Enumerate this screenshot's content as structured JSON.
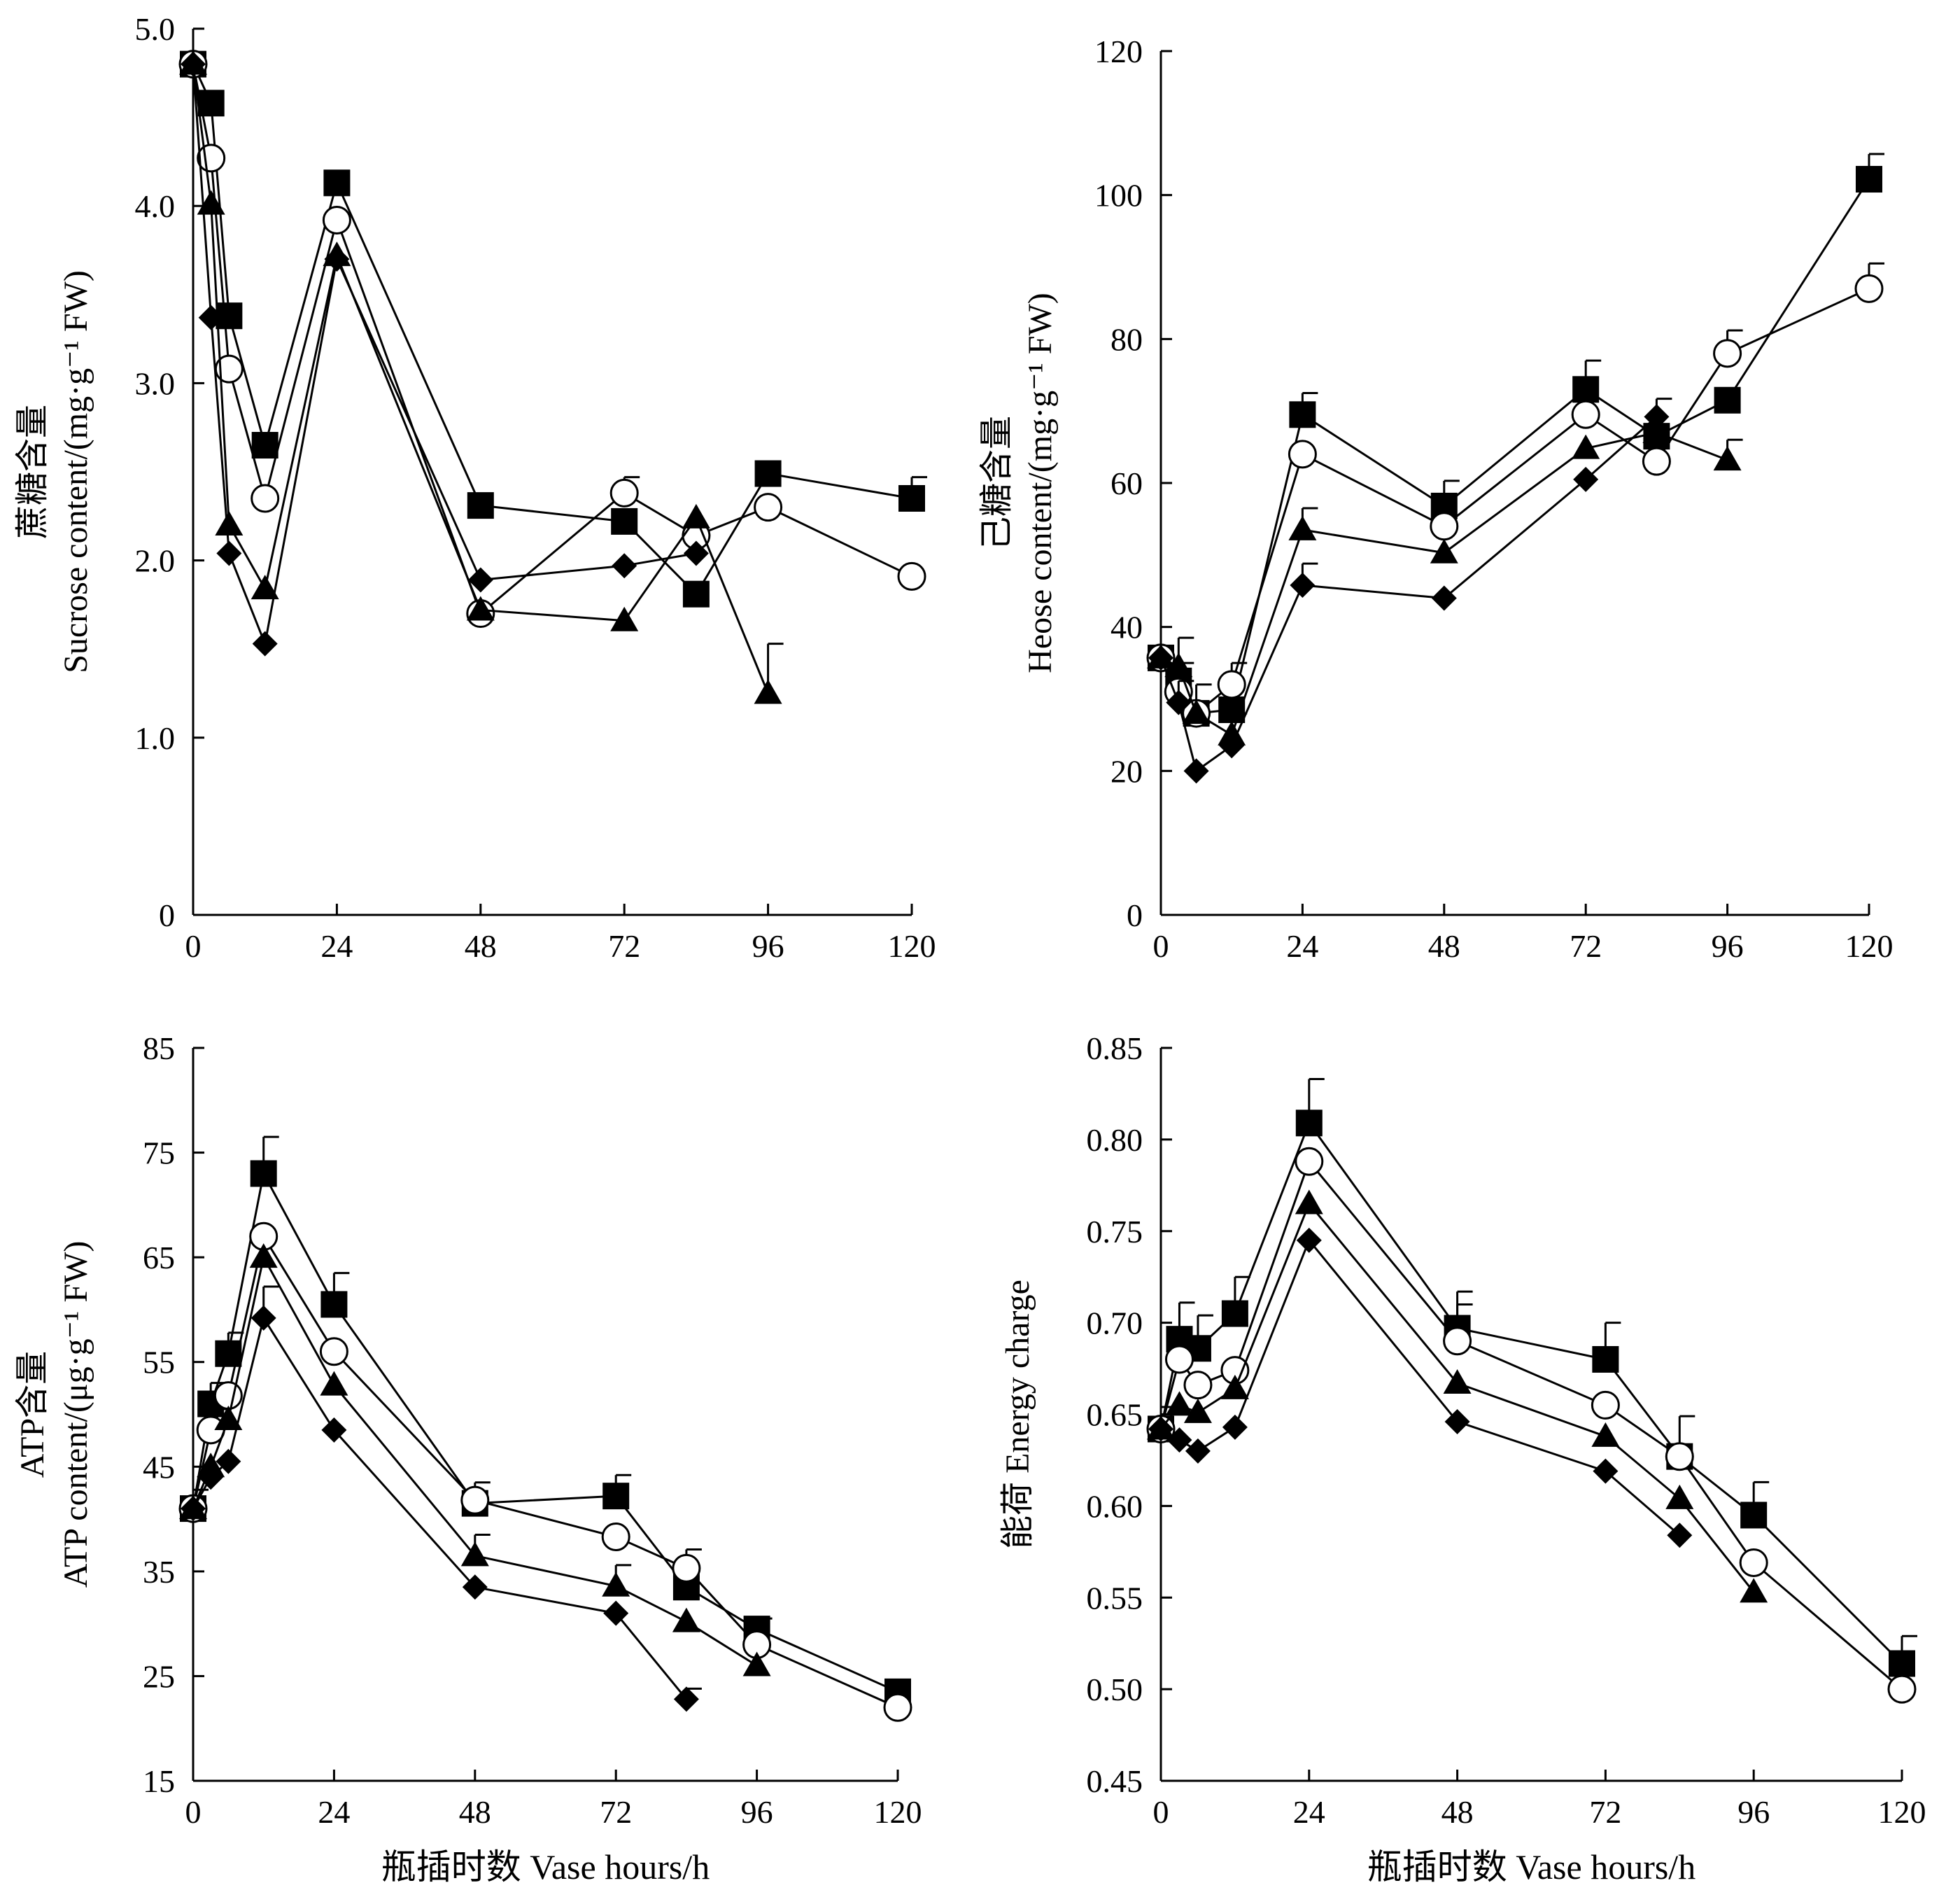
{
  "chart_data": [
    {
      "type": "line",
      "xlabel": "",
      "ylabel_cn": "蔗糖含量",
      "ylabel_en": "Sucrose content/(mg·g⁻¹ FW)",
      "xlim": [
        0,
        120
      ],
      "ylim": [
        0,
        5
      ],
      "xticks": [
        0,
        24,
        48,
        72,
        96,
        120
      ],
      "yticks": [
        0,
        1,
        2,
        3,
        4,
        5
      ],
      "xtick_labels": [
        "0",
        "24",
        "48",
        "72",
        "96",
        "120"
      ],
      "ytick_labels": [
        "0",
        "1.0",
        "2.0",
        "3.0",
        "4.0",
        "5.0"
      ],
      "series": [
        {
          "marker": "square",
          "points": [
            [
              0,
              4.8
            ],
            [
              3,
              4.58
            ],
            [
              6,
              3.38
            ],
            [
              12,
              2.65
            ],
            [
              24,
              4.13
            ],
            [
              48,
              2.31
            ],
            [
              72,
              2.22
            ],
            [
              84,
              1.81
            ],
            [
              96,
              2.49
            ],
            [
              120,
              2.35
            ]
          ],
          "err": [
            0,
            0,
            0,
            0,
            0,
            0,
            0,
            0,
            0,
            0.12
          ]
        },
        {
          "marker": "circle",
          "points": [
            [
              0,
              4.8
            ],
            [
              3,
              4.27
            ],
            [
              6,
              3.08
            ],
            [
              12,
              2.35
            ],
            [
              24,
              3.92
            ],
            [
              48,
              1.7
            ],
            [
              72,
              2.38
            ],
            [
              84,
              2.14
            ],
            [
              96,
              2.3
            ],
            [
              120,
              1.91
            ]
          ],
          "err": [
            0,
            0,
            0,
            0,
            0,
            0,
            0.09,
            0,
            0,
            0
          ]
        },
        {
          "marker": "triangle",
          "points": [
            [
              0,
              4.8
            ],
            [
              3,
              4.01
            ],
            [
              6,
              2.2
            ],
            [
              12,
              1.84
            ],
            [
              24,
              3.72
            ],
            [
              48,
              1.72
            ],
            [
              72,
              1.66
            ],
            [
              84,
              2.24
            ],
            [
              96,
              1.25
            ]
          ],
          "err": [
            0,
            0,
            0,
            0,
            0,
            0,
            0,
            0,
            0.28
          ]
        },
        {
          "marker": "diamond",
          "points": [
            [
              0,
              4.8
            ],
            [
              3,
              3.37
            ],
            [
              6,
              2.04
            ],
            [
              12,
              1.53
            ],
            [
              24,
              3.7
            ],
            [
              48,
              1.89
            ],
            [
              72,
              1.97
            ],
            [
              84,
              2.04
            ]
          ],
          "err": [
            0,
            0,
            0,
            0,
            0,
            0,
            0,
            0
          ]
        }
      ]
    },
    {
      "type": "line",
      "xlabel": "",
      "ylabel_cn": "己糖含量",
      "ylabel_en": "Heose content/(mg·g⁻¹ FW)",
      "xlim": [
        0,
        120
      ],
      "ylim": [
        0,
        120
      ],
      "xticks": [
        0,
        24,
        48,
        72,
        96,
        120
      ],
      "yticks": [
        0,
        20,
        40,
        60,
        80,
        100,
        120
      ],
      "xtick_labels": [
        "0",
        "24",
        "48",
        "72",
        "96",
        "120"
      ],
      "ytick_labels": [
        "0",
        "20",
        "40",
        "60",
        "80",
        "100",
        "120"
      ],
      "series": [
        {
          "marker": "square",
          "points": [
            [
              0,
              35.7
            ],
            [
              3,
              32.5
            ],
            [
              6,
              28
            ],
            [
              12,
              28.5
            ],
            [
              24,
              69.5
            ],
            [
              48,
              56.8
            ],
            [
              72,
              73
            ],
            [
              84,
              66.5
            ],
            [
              96,
              71.5
            ],
            [
              120,
              102.2
            ]
          ],
          "err": [
            0,
            2.5,
            0,
            0,
            3,
            3.5,
            4,
            0,
            0,
            3.5
          ]
        },
        {
          "marker": "circle",
          "points": [
            [
              0,
              35.7
            ],
            [
              3,
              31
            ],
            [
              6,
              28
            ],
            [
              12,
              32
            ],
            [
              24,
              64
            ],
            [
              48,
              54
            ],
            [
              72,
              69.5
            ],
            [
              84,
              63
            ],
            [
              96,
              78
            ],
            [
              120,
              87
            ]
          ],
          "err": [
            0,
            0,
            0,
            3,
            0,
            0,
            0,
            0,
            3.2,
            3.5
          ]
        },
        {
          "marker": "triangle",
          "points": [
            [
              0,
              35.7
            ],
            [
              3,
              34.5
            ],
            [
              6,
              28
            ],
            [
              12,
              25
            ],
            [
              24,
              53.5
            ],
            [
              48,
              50.3
            ],
            [
              72,
              64.8
            ],
            [
              84,
              67
            ],
            [
              96,
              63.2
            ]
          ],
          "err": [
            0,
            4,
            4,
            3,
            3,
            0,
            0,
            0,
            2.8
          ]
        },
        {
          "marker": "diamond",
          "points": [
            [
              0,
              35.7
            ],
            [
              3,
              29.5
            ],
            [
              6,
              20
            ],
            [
              12,
              23.5
            ],
            [
              24,
              45.8
            ],
            [
              48,
              44
            ],
            [
              72,
              60.5
            ],
            [
              84,
              69.2
            ]
          ],
          "err": [
            0,
            3,
            0,
            0,
            3,
            0,
            0,
            2.5
          ]
        }
      ]
    },
    {
      "type": "line",
      "xlabel": "瓶插时数  Vase hours/h",
      "ylabel_cn": "ATP含量",
      "ylabel_en": "ATP content/(μg·g⁻¹ FW)",
      "xlim": [
        0,
        120
      ],
      "ylim": [
        15,
        85
      ],
      "xticks": [
        0,
        24,
        48,
        72,
        96,
        120
      ],
      "yticks": [
        15,
        25,
        35,
        45,
        55,
        65,
        75,
        85
      ],
      "xtick_labels": [
        "0",
        "24",
        "48",
        "72",
        "96",
        "120"
      ],
      "ytick_labels": [
        "15",
        "25",
        "35",
        "45",
        "55",
        "65",
        "75",
        "85"
      ],
      "series": [
        {
          "marker": "square",
          "points": [
            [
              0,
              41
            ],
            [
              3,
              51
            ],
            [
              6,
              55.8
            ],
            [
              12,
              73
            ],
            [
              24,
              60.5
            ],
            [
              48,
              41.5
            ],
            [
              72,
              42.2
            ],
            [
              84,
              33.5
            ],
            [
              96,
              29.5
            ],
            [
              120,
              23.5
            ]
          ],
          "err": [
            1.8,
            2,
            2,
            3.5,
            3,
            2,
            2,
            0,
            1,
            0
          ]
        },
        {
          "marker": "circle",
          "points": [
            [
              0,
              41
            ],
            [
              3,
              48.5
            ],
            [
              6,
              51.8
            ],
            [
              12,
              67
            ],
            [
              24,
              56
            ],
            [
              48,
              41.8
            ],
            [
              72,
              38.3
            ],
            [
              84,
              35.3
            ],
            [
              96,
              28
            ],
            [
              120,
              22
            ]
          ],
          "err": [
            0,
            2,
            0,
            0,
            0,
            0,
            0,
            1.8,
            0,
            0
          ]
        },
        {
          "marker": "triangle",
          "points": [
            [
              0,
              41
            ],
            [
              3,
              45
            ],
            [
              6,
              49.5
            ],
            [
              12,
              65
            ],
            [
              24,
              52.8
            ],
            [
              48,
              36.5
            ],
            [
              72,
              33.6
            ],
            [
              84,
              30.2
            ],
            [
              96,
              26
            ]
          ],
          "err": [
            0,
            0,
            0,
            0,
            0,
            2,
            2,
            0,
            0
          ]
        },
        {
          "marker": "diamond",
          "points": [
            [
              0,
              41
            ],
            [
              3,
              44
            ],
            [
              6,
              45.5
            ],
            [
              12,
              59.2
            ],
            [
              24,
              48.5
            ],
            [
              48,
              33.5
            ],
            [
              72,
              31
            ],
            [
              84,
              22.8
            ]
          ],
          "err": [
            0,
            0,
            0,
            3,
            0,
            0,
            0,
            1
          ]
        }
      ]
    },
    {
      "type": "line",
      "xlabel": "瓶插时数  Vase hours/h",
      "ylabel_cn": "能荷",
      "ylabel_en": "Energy charge",
      "xlim": [
        0,
        120
      ],
      "ylim": [
        0.45,
        0.85
      ],
      "xticks": [
        0,
        24,
        48,
        72,
        96,
        120
      ],
      "yticks": [
        0.45,
        0.5,
        0.55,
        0.6,
        0.65,
        0.7,
        0.75,
        0.8,
        0.85
      ],
      "xtick_labels": [
        "0",
        "24",
        "48",
        "72",
        "96",
        "120"
      ],
      "ytick_labels": [
        "0.45",
        "0.50",
        "0.55",
        "0.60",
        "0.65",
        "0.70",
        "0.75",
        "0.80",
        "0.85"
      ],
      "series": [
        {
          "marker": "square",
          "points": [
            [
              0,
              0.642
            ],
            [
              3,
              0.691
            ],
            [
              6,
              0.686
            ],
            [
              12,
              0.705
            ],
            [
              24,
              0.809
            ],
            [
              48,
              0.697
            ],
            [
              72,
              0.68
            ],
            [
              84,
              0.627
            ],
            [
              96,
              0.595
            ],
            [
              120,
              0.514
            ]
          ],
          "err": [
            0.012,
            0.02,
            0.018,
            0.02,
            0.024,
            0.02,
            0.02,
            0.022,
            0.018,
            0.015
          ]
        },
        {
          "marker": "circle",
          "points": [
            [
              0,
              0.642
            ],
            [
              3,
              0.68
            ],
            [
              6,
              0.666
            ],
            [
              12,
              0.674
            ],
            [
              24,
              0.788
            ],
            [
              48,
              0.69
            ],
            [
              72,
              0.655
            ],
            [
              84,
              0.627
            ],
            [
              96,
              0.569
            ],
            [
              120,
              0.5
            ]
          ],
          "err": [
            0,
            0,
            0,
            0,
            0,
            0.02,
            0,
            0,
            0,
            0
          ]
        },
        {
          "marker": "triangle",
          "points": [
            [
              0,
              0.642
            ],
            [
              3,
              0.655
            ],
            [
              6,
              0.651
            ],
            [
              12,
              0.664
            ],
            [
              24,
              0.765
            ],
            [
              48,
              0.667
            ],
            [
              72,
              0.638
            ],
            [
              84,
              0.604
            ],
            [
              96,
              0.553
            ]
          ],
          "err": [
            0,
            0,
            0,
            0,
            0,
            0,
            0,
            0,
            0
          ]
        },
        {
          "marker": "diamond",
          "points": [
            [
              0,
              0.642
            ],
            [
              3,
              0.636
            ],
            [
              6,
              0.63
            ],
            [
              12,
              0.643
            ],
            [
              24,
              0.745
            ],
            [
              48,
              0.646
            ],
            [
              72,
              0.619
            ],
            [
              84,
              0.584
            ]
          ],
          "err": [
            0,
            0,
            0,
            0,
            0,
            0,
            0,
            0
          ]
        }
      ]
    }
  ]
}
